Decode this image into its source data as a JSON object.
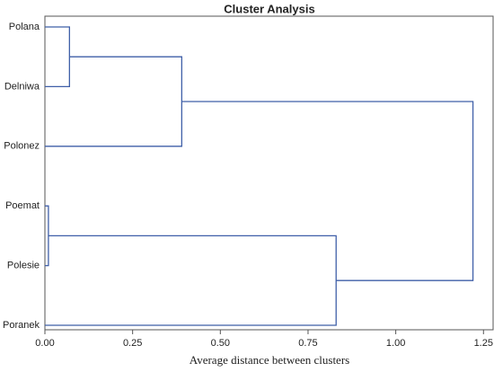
{
  "chart_data": {
    "type": "dendrogram",
    "title": "Cluster Analysis",
    "x_label": "Average distance between clusters",
    "leaves": [
      "Polana",
      "Delniwa",
      "Polonez",
      "Poemat",
      "Polesie",
      "Poranek"
    ],
    "merges": [
      {
        "children": [
          0,
          1
        ],
        "height": 0.07
      },
      {
        "children": [
          6,
          2
        ],
        "height": 0.39
      },
      {
        "children": [
          3,
          4
        ],
        "height": 0.01
      },
      {
        "children": [
          8,
          5
        ],
        "height": 0.83
      },
      {
        "children": [
          7,
          9
        ],
        "height": 1.22
      }
    ],
    "color": "#3f5fa8",
    "xlim": [
      0,
      1.28
    ],
    "xticks": [
      {
        "value": 0,
        "label": "0.00"
      },
      {
        "value": 0.25,
        "label": "0.25"
      },
      {
        "value": 0.5,
        "label": "0.50"
      },
      {
        "value": 0.75,
        "label": "0.75"
      },
      {
        "value": 1,
        "label": "1.00"
      },
      {
        "value": 1.25,
        "label": "1.25"
      }
    ]
  }
}
